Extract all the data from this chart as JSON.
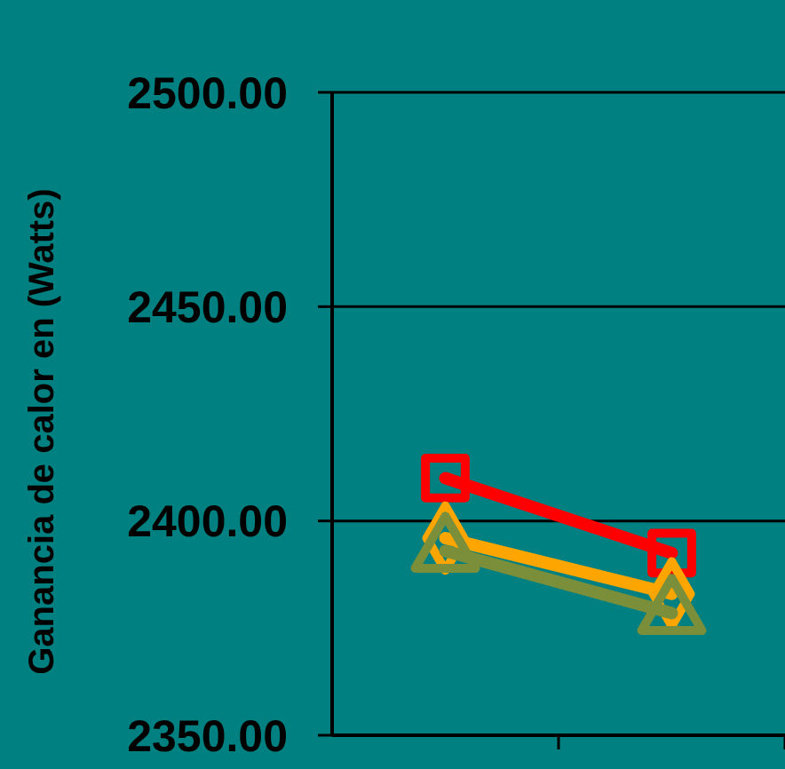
{
  "chart_data": {
    "type": "line",
    "ylabel": "Ganancia de calor en (Watts)",
    "categories": [
      null,
      null
    ],
    "ylim": [
      2350,
      2500
    ],
    "yticks": [
      {
        "value": 2350,
        "label": "2350.00"
      },
      {
        "value": 2400,
        "label": "2400.00"
      },
      {
        "value": 2450,
        "label": "2450.00"
      },
      {
        "value": 2500,
        "label": "2500.00"
      }
    ],
    "grid": "y",
    "series": [
      {
        "color": "#ff0000",
        "values": [
          2410,
          2392.5
        ],
        "marker": "square"
      },
      {
        "color": "#ffa500",
        "values": [
          2396,
          2383
        ],
        "marker": "diamond"
      },
      {
        "color": "#7b8f3a",
        "values": [
          2393,
          2378.5
        ],
        "marker": "triangle"
      }
    ]
  }
}
